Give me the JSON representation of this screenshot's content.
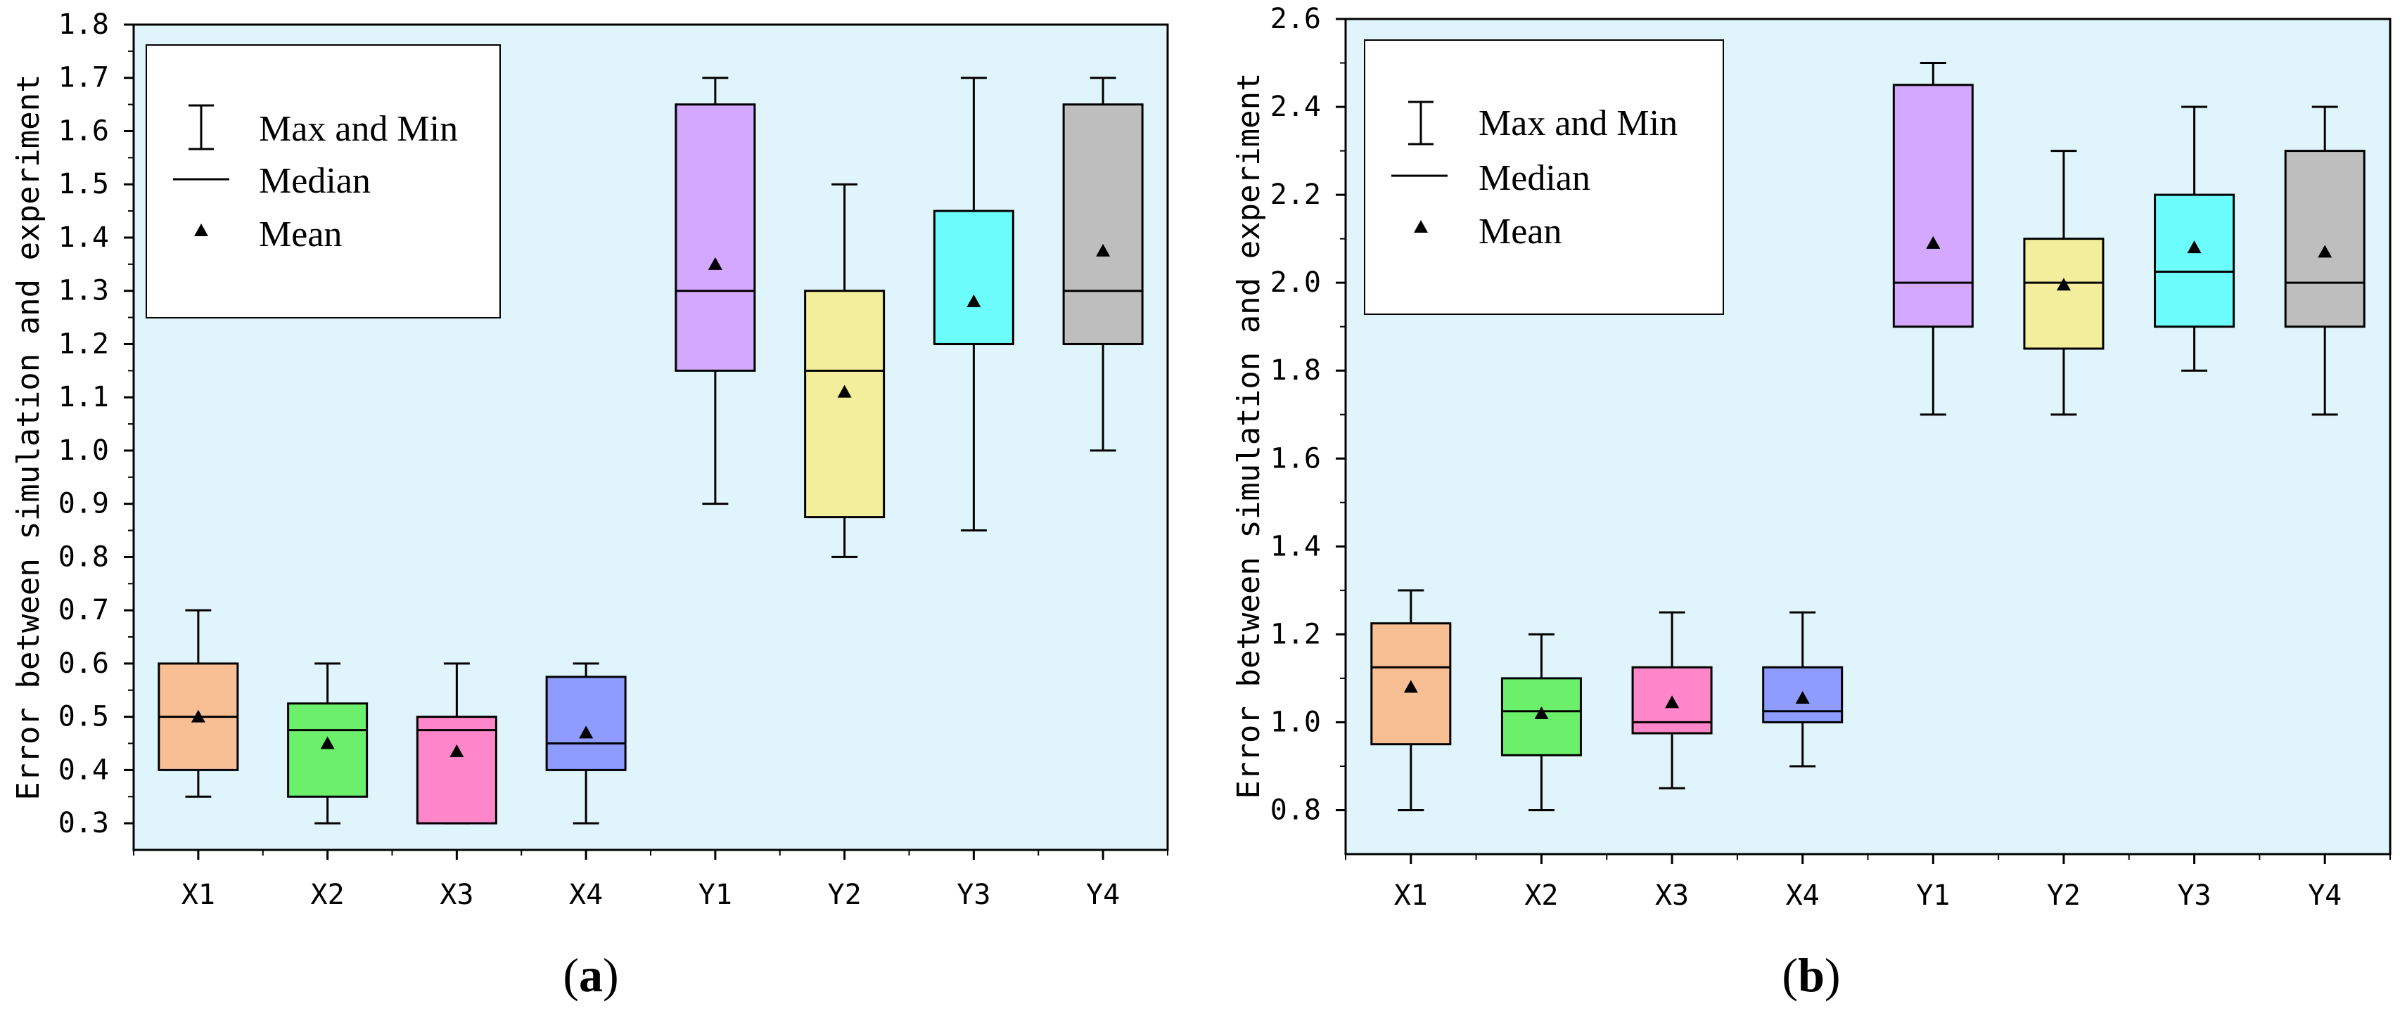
{
  "chart_data": [
    {
      "type": "box",
      "panel_label": "a",
      "ylabel": "Error between simulation and experiment",
      "xlabel": "",
      "ylim": [
        0.25,
        1.8
      ],
      "yticks": [
        0.3,
        0.4,
        0.5,
        0.6,
        0.7,
        0.8,
        0.9,
        1.0,
        1.1,
        1.2,
        1.3,
        1.4,
        1.5,
        1.6,
        1.7,
        1.8
      ],
      "ytick_labels": [
        "0.3",
        "0.4",
        "0.5",
        "0.6",
        "0.7",
        "0.8",
        "0.9",
        "1.0",
        "1.1",
        "1.2",
        "1.3",
        "1.4",
        "1.5",
        "1.6",
        "1.7",
        "1.8"
      ],
      "categories": [
        "X1",
        "X2",
        "X3",
        "X4",
        "Y1",
        "Y2",
        "Y3",
        "Y4"
      ],
      "boxes": [
        {
          "label": "X1",
          "min": 0.35,
          "q1": 0.4,
          "median": 0.5,
          "q3": 0.6,
          "max": 0.7,
          "mean": 0.5,
          "color": "#F8BE94"
        },
        {
          "label": "X2",
          "min": 0.3,
          "q1": 0.35,
          "median": 0.475,
          "q3": 0.525,
          "max": 0.6,
          "mean": 0.45,
          "color": "#6CF06C"
        },
        {
          "label": "X3",
          "min": 0.3,
          "q1": 0.3,
          "median": 0.475,
          "q3": 0.5,
          "max": 0.6,
          "mean": 0.435,
          "color": "#FF86C8"
        },
        {
          "label": "X4",
          "min": 0.3,
          "q1": 0.4,
          "median": 0.45,
          "q3": 0.575,
          "max": 0.6,
          "mean": 0.47,
          "color": "#8E9CFF"
        },
        {
          "label": "Y1",
          "min": 0.9,
          "q1": 1.15,
          "median": 1.3,
          "q3": 1.65,
          "max": 1.7,
          "mean": 1.35,
          "color": "#D4A8FF"
        },
        {
          "label": "Y2",
          "min": 0.8,
          "q1": 0.875,
          "median": 1.15,
          "q3": 1.3,
          "max": 1.5,
          "mean": 1.11,
          "color": "#F2EE9C"
        },
        {
          "label": "Y3",
          "min": 0.85,
          "q1": 1.2,
          "median": 1.2,
          "q3": 1.45,
          "max": 1.7,
          "mean": 1.28,
          "color": "#6CFCFC"
        },
        {
          "label": "Y4",
          "min": 1.0,
          "q1": 1.2,
          "median": 1.3,
          "q3": 1.65,
          "max": 1.7,
          "mean": 1.375,
          "color": "#BEBEBE"
        }
      ],
      "legend": [
        "Max and Min",
        "Median",
        "Mean"
      ],
      "legend_position": "top-left",
      "background": "#E0F4FC"
    },
    {
      "type": "box",
      "panel_label": "b",
      "ylabel": "Error between simulation and experiment",
      "xlabel": "",
      "ylim": [
        0.7,
        2.6
      ],
      "yticks": [
        0.8,
        1.0,
        1.2,
        1.4,
        1.6,
        1.8,
        2.0,
        2.2,
        2.4,
        2.6
      ],
      "ytick_labels": [
        "0.8",
        "1.0",
        "1.2",
        "1.4",
        "1.6",
        "1.8",
        "2.0",
        "2.2",
        "2.4",
        "2.6"
      ],
      "categories": [
        "X1",
        "X2",
        "X3",
        "X4",
        "Y1",
        "Y2",
        "Y3",
        "Y4"
      ],
      "boxes": [
        {
          "label": "X1",
          "min": 0.8,
          "q1": 0.95,
          "median": 1.125,
          "q3": 1.225,
          "max": 1.3,
          "mean": 1.08,
          "color": "#F8BE94"
        },
        {
          "label": "X2",
          "min": 0.8,
          "q1": 0.925,
          "median": 1.025,
          "q3": 1.1,
          "max": 1.2,
          "mean": 1.02,
          "color": "#6CF06C"
        },
        {
          "label": "X3",
          "min": 0.85,
          "q1": 0.975,
          "median": 1.0,
          "q3": 1.125,
          "max": 1.25,
          "mean": 1.045,
          "color": "#FF86C8"
        },
        {
          "label": "X4",
          "min": 0.9,
          "q1": 1.0,
          "median": 1.025,
          "q3": 1.125,
          "max": 1.25,
          "mean": 1.055,
          "color": "#8E9CFF"
        },
        {
          "label": "Y1",
          "min": 1.7,
          "q1": 1.9,
          "median": 2.0,
          "q3": 2.45,
          "max": 2.5,
          "mean": 2.09,
          "color": "#D4A8FF"
        },
        {
          "label": "Y2",
          "min": 1.7,
          "q1": 1.85,
          "median": 2.0,
          "q3": 2.1,
          "max": 2.3,
          "mean": 1.995,
          "color": "#F2EE9C"
        },
        {
          "label": "Y3",
          "min": 1.8,
          "q1": 1.9,
          "median": 2.025,
          "q3": 2.2,
          "max": 2.4,
          "mean": 2.08,
          "color": "#6CFCFC"
        },
        {
          "label": "Y4",
          "min": 1.7,
          "q1": 1.9,
          "median": 2.0,
          "q3": 2.3,
          "max": 2.4,
          "mean": 2.07,
          "color": "#BEBEBE"
        }
      ],
      "legend": [
        "Max and Min",
        "Median",
        "Mean"
      ],
      "legend_position": "top-left",
      "background": "#E0F4FC"
    }
  ]
}
